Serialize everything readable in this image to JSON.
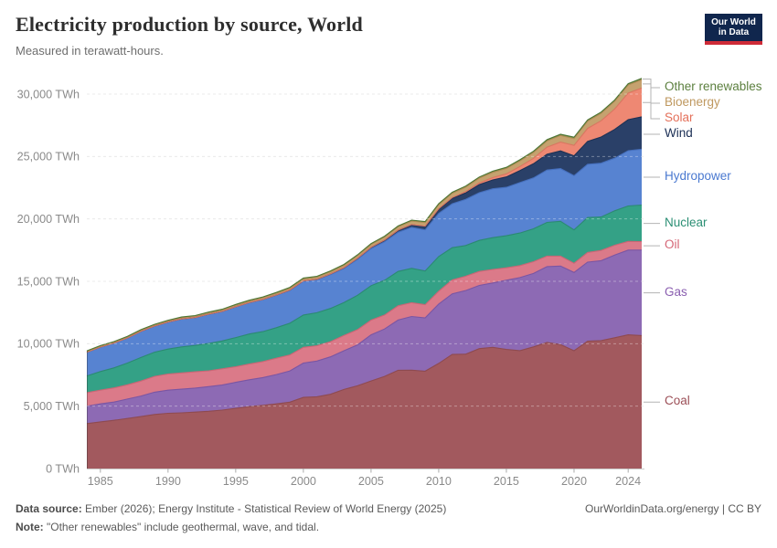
{
  "header": {
    "title": "Electricity production by source, World",
    "subtitle": "Measured in terawatt-hours.",
    "logo": {
      "line1": "Our World",
      "line2": "in Data",
      "bg": "#10264D",
      "accent": "#CE2B37"
    }
  },
  "footer": {
    "source_label": "Data source:",
    "source_text": " Ember (2026); Energy Institute - Statistical Review of World Energy (2025)",
    "note_label": "Note:",
    "note_text": " \"Other renewables\" include geothermal, wave, and tidal.",
    "link": "OurWorldinData.org/energy | CC BY"
  },
  "chart_data": {
    "type": "area",
    "stacked": true,
    "title": "Electricity production by source, World",
    "unit": "TWh",
    "grid": "dashed",
    "legend_position": "right",
    "xlim": [
      1984,
      2025
    ],
    "ylim": [
      0,
      31300
    ],
    "x_ticks": [
      1985,
      1990,
      1995,
      2000,
      2005,
      2010,
      2015,
      2020,
      2024
    ],
    "y_ticks": [
      0,
      5000,
      10000,
      15000,
      20000,
      25000,
      30000
    ],
    "y_tick_suffix": " TWh",
    "x": [
      1984,
      1985,
      1986,
      1987,
      1988,
      1989,
      1990,
      1991,
      1992,
      1993,
      1994,
      1995,
      1996,
      1997,
      1998,
      1999,
      2000,
      2001,
      2002,
      2003,
      2004,
      2005,
      2006,
      2007,
      2008,
      2009,
      2010,
      2011,
      2012,
      2013,
      2014,
      2015,
      2016,
      2017,
      2018,
      2019,
      2020,
      2021,
      2022,
      2023,
      2024,
      2025
    ],
    "series": [
      {
        "name": "Coal",
        "color": "#A2595E",
        "stroke": "#8E4A50",
        "label_color": "#9C4F57",
        "values": [
          3600,
          3740,
          3860,
          4010,
          4160,
          4330,
          4430,
          4460,
          4520,
          4590,
          4680,
          4820,
          4960,
          5060,
          5180,
          5320,
          5700,
          5750,
          5950,
          6340,
          6630,
          7020,
          7380,
          7870,
          7880,
          7800,
          8420,
          9140,
          9160,
          9610,
          9710,
          9540,
          9450,
          9750,
          10100,
          9930,
          9440,
          10200,
          10250,
          10480,
          10710,
          10650
        ]
      },
      {
        "name": "Gas",
        "color": "#8D6AB4",
        "stroke": "#7A55A3",
        "label_color": "#8A5EB0",
        "values": [
          1390,
          1440,
          1470,
          1560,
          1650,
          1790,
          1850,
          1900,
          1930,
          1970,
          2010,
          2090,
          2150,
          2230,
          2350,
          2500,
          2750,
          2860,
          3000,
          3100,
          3280,
          3690,
          3800,
          4030,
          4300,
          4270,
          4760,
          4860,
          5100,
          5060,
          5160,
          5550,
          5850,
          5880,
          6080,
          6290,
          6270,
          6340,
          6400,
          6630,
          6790,
          6850
        ]
      },
      {
        "name": "Oil",
        "color": "#DB7A89",
        "stroke": "#C96675",
        "label_color": "#D56676",
        "values": [
          1090,
          1100,
          1130,
          1140,
          1200,
          1260,
          1290,
          1300,
          1300,
          1270,
          1300,
          1250,
          1260,
          1280,
          1310,
          1280,
          1260,
          1230,
          1210,
          1220,
          1220,
          1180,
          1120,
          1140,
          1110,
          1060,
          1030,
          1110,
          1150,
          1120,
          1080,
          990,
          960,
          940,
          840,
          800,
          740,
          770,
          820,
          780,
          700,
          680
        ]
      },
      {
        "name": "Nuclear",
        "color": "#34A186",
        "stroke": "#2B8A72",
        "label_color": "#2B8F74",
        "values": [
          1340,
          1490,
          1600,
          1740,
          1890,
          1940,
          2000,
          2090,
          2110,
          2190,
          2230,
          2330,
          2410,
          2400,
          2440,
          2540,
          2590,
          2640,
          2670,
          2640,
          2750,
          2760,
          2780,
          2750,
          2750,
          2700,
          2770,
          2580,
          2460,
          2490,
          2550,
          2570,
          2610,
          2640,
          2700,
          2790,
          2670,
          2800,
          2680,
          2760,
          2840,
          2920
        ]
      },
      {
        "name": "Hydropower",
        "color": "#5783D1",
        "stroke": "#4670BE",
        "label_color": "#4A79D0",
        "values": [
          1900,
          1960,
          1990,
          2010,
          2090,
          2090,
          2160,
          2230,
          2230,
          2340,
          2360,
          2470,
          2510,
          2570,
          2610,
          2640,
          2710,
          2650,
          2710,
          2730,
          2880,
          2970,
          3090,
          3140,
          3280,
          3290,
          3460,
          3520,
          3690,
          3820,
          3910,
          3880,
          4040,
          4070,
          4190,
          4220,
          4340,
          4260,
          4310,
          4210,
          4420,
          4480
        ]
      },
      {
        "name": "Wind",
        "color": "#2A4068",
        "stroke": "#1E3154",
        "label_color": "#1A2E54",
        "values": [
          0,
          1,
          1,
          1,
          1,
          2,
          4,
          4,
          5,
          6,
          7,
          8,
          9,
          12,
          16,
          21,
          31,
          38,
          52,
          63,
          85,
          104,
          133,
          171,
          221,
          276,
          342,
          437,
          525,
          646,
          712,
          831,
          959,
          1134,
          1265,
          1420,
          1590,
          1840,
          2100,
          2310,
          2490,
          2600
        ]
      },
      {
        "name": "Solar",
        "color": "#EE8873",
        "stroke": "#D97661",
        "label_color": "#E4705A",
        "values": [
          0,
          0,
          0,
          0,
          0,
          0,
          0,
          0,
          0,
          0,
          0,
          0,
          0,
          0,
          0,
          1,
          1,
          1,
          2,
          2,
          3,
          4,
          5,
          7,
          12,
          20,
          32,
          63,
          97,
          132,
          190,
          250,
          328,
          444,
          574,
          704,
          846,
          1040,
          1300,
          1630,
          2130,
          2300
        ]
      },
      {
        "name": "Bioenergy",
        "color": "#C5A26F",
        "stroke": "#B08C55",
        "label_color": "#BF985F",
        "values": [
          65,
          70,
          75,
          80,
          85,
          90,
          95,
          100,
          105,
          110,
          115,
          120,
          125,
          130,
          135,
          145,
          155,
          160,
          170,
          185,
          200,
          215,
          230,
          250,
          270,
          290,
          320,
          340,
          360,
          390,
          420,
          430,
          450,
          470,
          500,
          530,
          550,
          580,
          600,
          620,
          650,
          670
        ]
      },
      {
        "name": "Other renewables",
        "color": "#5F8C43",
        "stroke": "#4D7635",
        "label_color": "#5B7F3E",
        "values": [
          44,
          45,
          46,
          48,
          50,
          52,
          54,
          55,
          57,
          58,
          60,
          61,
          63,
          64,
          66,
          67,
          69,
          70,
          72,
          73,
          75,
          76,
          78,
          79,
          81,
          82,
          84,
          85,
          87,
          88,
          90,
          92,
          93,
          95,
          97,
          99,
          100,
          101,
          102,
          103,
          104,
          105
        ]
      }
    ]
  }
}
